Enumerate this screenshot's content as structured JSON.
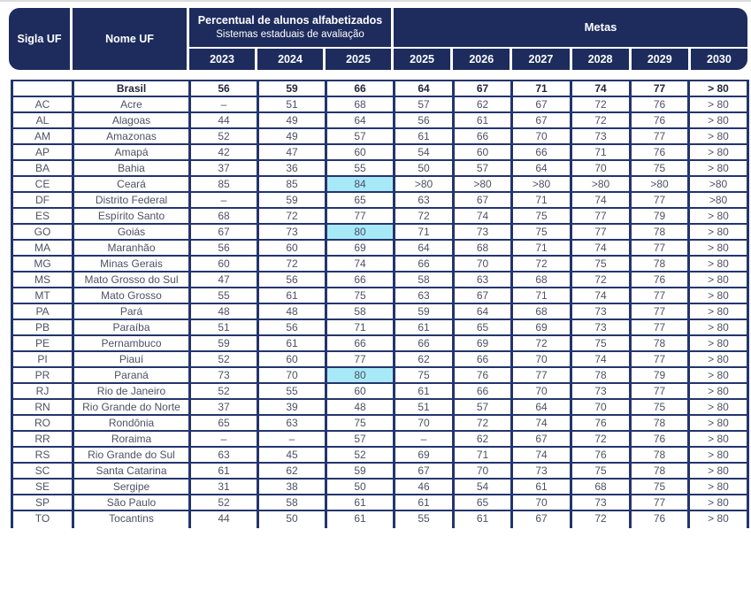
{
  "colors": {
    "navy": "#1d2c5d",
    "border": "#24356d",
    "highlight": "#a8e9f8",
    "text": "#4d5263",
    "text_bold": "#23283a"
  },
  "chart_data": {
    "type": "table",
    "header": {
      "col_sigla": "Sigla UF",
      "col_nome": "Nome UF",
      "group_percentual": {
        "title": "Percentual de alunos alfabetizados",
        "subtitle": "Sistemas estaduais de avaliação",
        "years": [
          "2023",
          "2024",
          "2025"
        ]
      },
      "group_metas": {
        "title": "Metas",
        "years": [
          "2025",
          "2026",
          "2027",
          "2028",
          "2029",
          "2030"
        ]
      }
    },
    "rows": [
      {
        "sigla": "",
        "nome": "Brasil",
        "bold": true,
        "highlight_2025": false,
        "percentual": [
          "56",
          "59",
          "66"
        ],
        "metas": [
          "64",
          "67",
          "71",
          "74",
          "77",
          "> 80"
        ]
      },
      {
        "sigla": "AC",
        "nome": "Acre",
        "bold": false,
        "highlight_2025": false,
        "percentual": [
          "–",
          "51",
          "68"
        ],
        "metas": [
          "57",
          "62",
          "67",
          "72",
          "76",
          "> 80"
        ]
      },
      {
        "sigla": "AL",
        "nome": "Alagoas",
        "bold": false,
        "highlight_2025": false,
        "percentual": [
          "44",
          "49",
          "64"
        ],
        "metas": [
          "56",
          "61",
          "67",
          "72",
          "76",
          "> 80"
        ]
      },
      {
        "sigla": "AM",
        "nome": "Amazonas",
        "bold": false,
        "highlight_2025": false,
        "percentual": [
          "52",
          "49",
          "57"
        ],
        "metas": [
          "61",
          "66",
          "70",
          "73",
          "77",
          "> 80"
        ]
      },
      {
        "sigla": "AP",
        "nome": "Amapá",
        "bold": false,
        "highlight_2025": false,
        "percentual": [
          "42",
          "47",
          "60"
        ],
        "metas": [
          "54",
          "60",
          "66",
          "71",
          "76",
          "> 80"
        ]
      },
      {
        "sigla": "BA",
        "nome": "Bahia",
        "bold": false,
        "highlight_2025": false,
        "percentual": [
          "37",
          "36",
          "55"
        ],
        "metas": [
          "50",
          "57",
          "64",
          "70",
          "75",
          "> 80"
        ]
      },
      {
        "sigla": "CE",
        "nome": "Ceará",
        "bold": false,
        "highlight_2025": true,
        "percentual": [
          "85",
          "85",
          "84"
        ],
        "metas": [
          ">80",
          ">80",
          ">80",
          ">80",
          ">80",
          ">80"
        ]
      },
      {
        "sigla": "DF",
        "nome": "Distrito Federal",
        "bold": false,
        "highlight_2025": false,
        "percentual": [
          "–",
          "59",
          "65"
        ],
        "metas": [
          "63",
          "67",
          "71",
          "74",
          "77",
          ">80"
        ]
      },
      {
        "sigla": "ES",
        "nome": "Espírito Santo",
        "bold": false,
        "highlight_2025": false,
        "percentual": [
          "68",
          "72",
          "77"
        ],
        "metas": [
          "72",
          "74",
          "75",
          "77",
          "79",
          "> 80"
        ]
      },
      {
        "sigla": "GO",
        "nome": "Goiás",
        "bold": false,
        "highlight_2025": true,
        "percentual": [
          "67",
          "73",
          "80"
        ],
        "metas": [
          "71",
          "73",
          "75",
          "77",
          "78",
          "> 80"
        ]
      },
      {
        "sigla": "MA",
        "nome": "Maranhão",
        "bold": false,
        "highlight_2025": false,
        "percentual": [
          "56",
          "60",
          "69"
        ],
        "metas": [
          "64",
          "68",
          "71",
          "74",
          "77",
          "> 80"
        ]
      },
      {
        "sigla": "MG",
        "nome": "Minas Gerais",
        "bold": false,
        "highlight_2025": false,
        "percentual": [
          "60",
          "72",
          "74"
        ],
        "metas": [
          "66",
          "70",
          "72",
          "75",
          "78",
          "> 80"
        ]
      },
      {
        "sigla": "MS",
        "nome": "Mato Grosso do Sul",
        "bold": false,
        "highlight_2025": false,
        "percentual": [
          "47",
          "56",
          "66"
        ],
        "metas": [
          "58",
          "63",
          "68",
          "72",
          "76",
          "> 80"
        ]
      },
      {
        "sigla": "MT",
        "nome": "Mato Grosso",
        "bold": false,
        "highlight_2025": false,
        "percentual": [
          "55",
          "61",
          "75"
        ],
        "metas": [
          "63",
          "67",
          "71",
          "74",
          "77",
          "> 80"
        ]
      },
      {
        "sigla": "PA",
        "nome": "Pará",
        "bold": false,
        "highlight_2025": false,
        "percentual": [
          "48",
          "48",
          "58"
        ],
        "metas": [
          "59",
          "64",
          "68",
          "73",
          "77",
          "> 80"
        ]
      },
      {
        "sigla": "PB",
        "nome": "Paraíba",
        "bold": false,
        "highlight_2025": false,
        "percentual": [
          "51",
          "56",
          "71"
        ],
        "metas": [
          "61",
          "65",
          "69",
          "73",
          "77",
          "> 80"
        ]
      },
      {
        "sigla": "PE",
        "nome": "Pernambuco",
        "bold": false,
        "highlight_2025": false,
        "percentual": [
          "59",
          "61",
          "66"
        ],
        "metas": [
          "66",
          "69",
          "72",
          "75",
          "78",
          "> 80"
        ]
      },
      {
        "sigla": "PI",
        "nome": "Piauí",
        "bold": false,
        "highlight_2025": false,
        "percentual": [
          "52",
          "60",
          "77"
        ],
        "metas": [
          "62",
          "66",
          "70",
          "74",
          "77",
          "> 80"
        ]
      },
      {
        "sigla": "PR",
        "nome": "Paraná",
        "bold": false,
        "highlight_2025": true,
        "percentual": [
          "73",
          "70",
          "80"
        ],
        "metas": [
          "75",
          "76",
          "77",
          "78",
          "79",
          "> 80"
        ]
      },
      {
        "sigla": "RJ",
        "nome": "Rio de Janeiro",
        "bold": false,
        "highlight_2025": false,
        "percentual": [
          "52",
          "55",
          "60"
        ],
        "metas": [
          "61",
          "66",
          "70",
          "73",
          "77",
          "> 80"
        ]
      },
      {
        "sigla": "RN",
        "nome": "Rio Grande do Norte",
        "bold": false,
        "highlight_2025": false,
        "percentual": [
          "37",
          "39",
          "48"
        ],
        "metas": [
          "51",
          "57",
          "64",
          "70",
          "75",
          "> 80"
        ]
      },
      {
        "sigla": "RO",
        "nome": "Rondônia",
        "bold": false,
        "highlight_2025": false,
        "percentual": [
          "65",
          "63",
          "75"
        ],
        "metas": [
          "70",
          "72",
          "74",
          "76",
          "78",
          "> 80"
        ]
      },
      {
        "sigla": "RR",
        "nome": "Roraima",
        "bold": false,
        "highlight_2025": false,
        "percentual": [
          "–",
          "–",
          "57"
        ],
        "metas": [
          "–",
          "62",
          "67",
          "72",
          "76",
          "> 80"
        ]
      },
      {
        "sigla": "RS",
        "nome": "Rio Grande do Sul",
        "bold": false,
        "highlight_2025": false,
        "percentual": [
          "63",
          "45",
          "52"
        ],
        "metas": [
          "69",
          "71",
          "74",
          "76",
          "78",
          "> 80"
        ]
      },
      {
        "sigla": "SC",
        "nome": "Santa Catarina",
        "bold": false,
        "highlight_2025": false,
        "percentual": [
          "61",
          "62",
          "59"
        ],
        "metas": [
          "67",
          "70",
          "73",
          "75",
          "78",
          "> 80"
        ]
      },
      {
        "sigla": "SE",
        "nome": "Sergipe",
        "bold": false,
        "highlight_2025": false,
        "percentual": [
          "31",
          "38",
          "50"
        ],
        "metas": [
          "46",
          "54",
          "61",
          "68",
          "75",
          "> 80"
        ]
      },
      {
        "sigla": "SP",
        "nome": "São Paulo",
        "bold": false,
        "highlight_2025": false,
        "percentual": [
          "52",
          "58",
          "61"
        ],
        "metas": [
          "61",
          "65",
          "70",
          "73",
          "77",
          "> 80"
        ]
      },
      {
        "sigla": "TO",
        "nome": "Tocantins",
        "bold": false,
        "highlight_2025": false,
        "percentual": [
          "44",
          "50",
          "61"
        ],
        "metas": [
          "55",
          "61",
          "67",
          "72",
          "76",
          "> 80"
        ]
      }
    ]
  }
}
